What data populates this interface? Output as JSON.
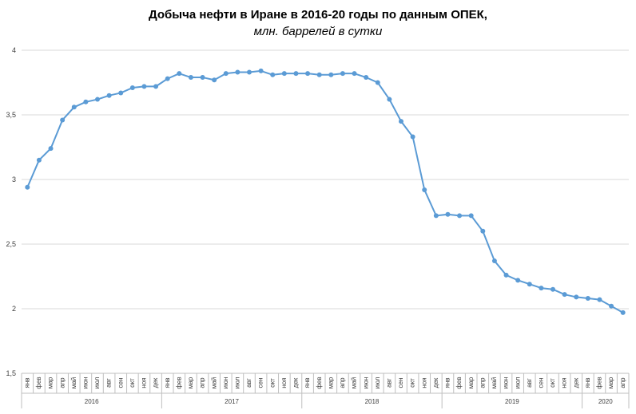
{
  "chart_data": {
    "type": "line",
    "title": "Добыча  нефти в Иране в 2016-20 годы по данным  ОПЕК,",
    "subtitle": "млн. баррелей в сутки",
    "ylim": [
      1.5,
      4
    ],
    "y_ticks": [
      "1,5",
      "2",
      "2,5",
      "3",
      "3,5",
      "4"
    ],
    "y_tick_values": [
      1.5,
      2,
      2.5,
      3,
      3.5,
      4
    ],
    "grid": "horizontal",
    "legend": "none",
    "line_color": "#5b9bd5",
    "month_labels": [
      "янв",
      "фев",
      "мар",
      "апр",
      "май",
      "июн",
      "июл",
      "авг",
      "сен",
      "окт",
      "ноя",
      "дек"
    ],
    "years": [
      {
        "label": "2016",
        "months": 12
      },
      {
        "label": "2017",
        "months": 12
      },
      {
        "label": "2018",
        "months": 12
      },
      {
        "label": "2019",
        "months": 12
      },
      {
        "label": "2020",
        "months": 4
      }
    ],
    "x": [
      "янв",
      "фев",
      "мар",
      "апр",
      "май",
      "июн",
      "июл",
      "авг",
      "сен",
      "окт",
      "ноя",
      "дек",
      "янв",
      "фев",
      "мар",
      "апр",
      "май",
      "июн",
      "июл",
      "авг",
      "сен",
      "окт",
      "ноя",
      "дек",
      "янв",
      "фев",
      "мар",
      "апр",
      "май",
      "июн",
      "июл",
      "авг",
      "сен",
      "окт",
      "ноя",
      "дек",
      "янв",
      "фев",
      "мар",
      "апр",
      "май",
      "июн",
      "июл",
      "авг",
      "сен",
      "окт",
      "ноя",
      "дек",
      "янв",
      "фев",
      "мар",
      "апр"
    ],
    "values": [
      2.94,
      3.15,
      3.24,
      3.46,
      3.56,
      3.6,
      3.62,
      3.65,
      3.67,
      3.71,
      3.72,
      3.72,
      3.78,
      3.82,
      3.79,
      3.79,
      3.77,
      3.82,
      3.83,
      3.83,
      3.84,
      3.81,
      3.82,
      3.82,
      3.82,
      3.81,
      3.81,
      3.82,
      3.82,
      3.79,
      3.75,
      3.62,
      3.45,
      3.33,
      2.92,
      2.72,
      2.73,
      2.72,
      2.72,
      2.6,
      2.37,
      2.26,
      2.22,
      2.19,
      2.16,
      2.15,
      2.11,
      2.09,
      2.08,
      2.07,
      2.02,
      1.97
    ]
  }
}
